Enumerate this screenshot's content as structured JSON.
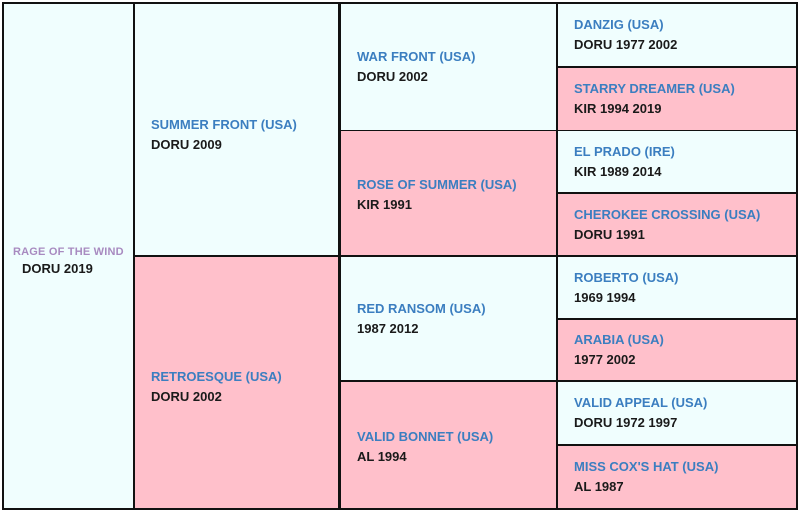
{
  "pedigree": {
    "subject": {
      "name": "RAGE OF THE WIND",
      "info": "DORU 2019",
      "sex": "colt"
    },
    "parents": [
      {
        "name": "SUMMER FRONT (USA)",
        "info": "DORU 2009",
        "sex": "colt"
      },
      {
        "name": "RETROESQUE (USA)",
        "info": "DORU 2002",
        "sex": "filly"
      }
    ],
    "grandparents": [
      {
        "name": "WAR FRONT (USA)",
        "info": "DORU 2002",
        "sex": "colt"
      },
      {
        "name": "ROSE OF SUMMER (USA)",
        "info": "KIR 1991",
        "sex": "filly"
      },
      {
        "name": "RED RANSOM (USA)",
        "info": "1987 2012",
        "sex": "colt"
      },
      {
        "name": "VALID BONNET (USA)",
        "info": "AL 1994",
        "sex": "filly"
      }
    ],
    "great_grandparents": [
      {
        "name": "DANZIG (USA)",
        "info": "DORU 1977 2002",
        "sex": "colt"
      },
      {
        "name": "STARRY DREAMER (USA)",
        "info": "KIR 1994 2019",
        "sex": "filly"
      },
      {
        "name": "EL PRADO (IRE)",
        "info": "KIR 1989 2014",
        "sex": "colt"
      },
      {
        "name": "CHEROKEE CROSSING (USA)",
        "info": "DORU 1991",
        "sex": "filly"
      },
      {
        "name": "ROBERTO (USA)",
        "info": "1969 1994",
        "sex": "colt"
      },
      {
        "name": "ARABIA (USA)",
        "info": "1977 2002",
        "sex": "filly"
      },
      {
        "name": "VALID APPEAL (USA)",
        "info": "DORU 1972 1997",
        "sex": "colt"
      },
      {
        "name": "MISS COX'S HAT (USA)",
        "info": "AL 1987",
        "sex": "filly"
      }
    ]
  },
  "colors": {
    "colt": "#f0fefe",
    "filly": "#ffc0cb",
    "name": "#3b7ec0",
    "subject_name": "#a88ac0",
    "border": "#111111"
  }
}
